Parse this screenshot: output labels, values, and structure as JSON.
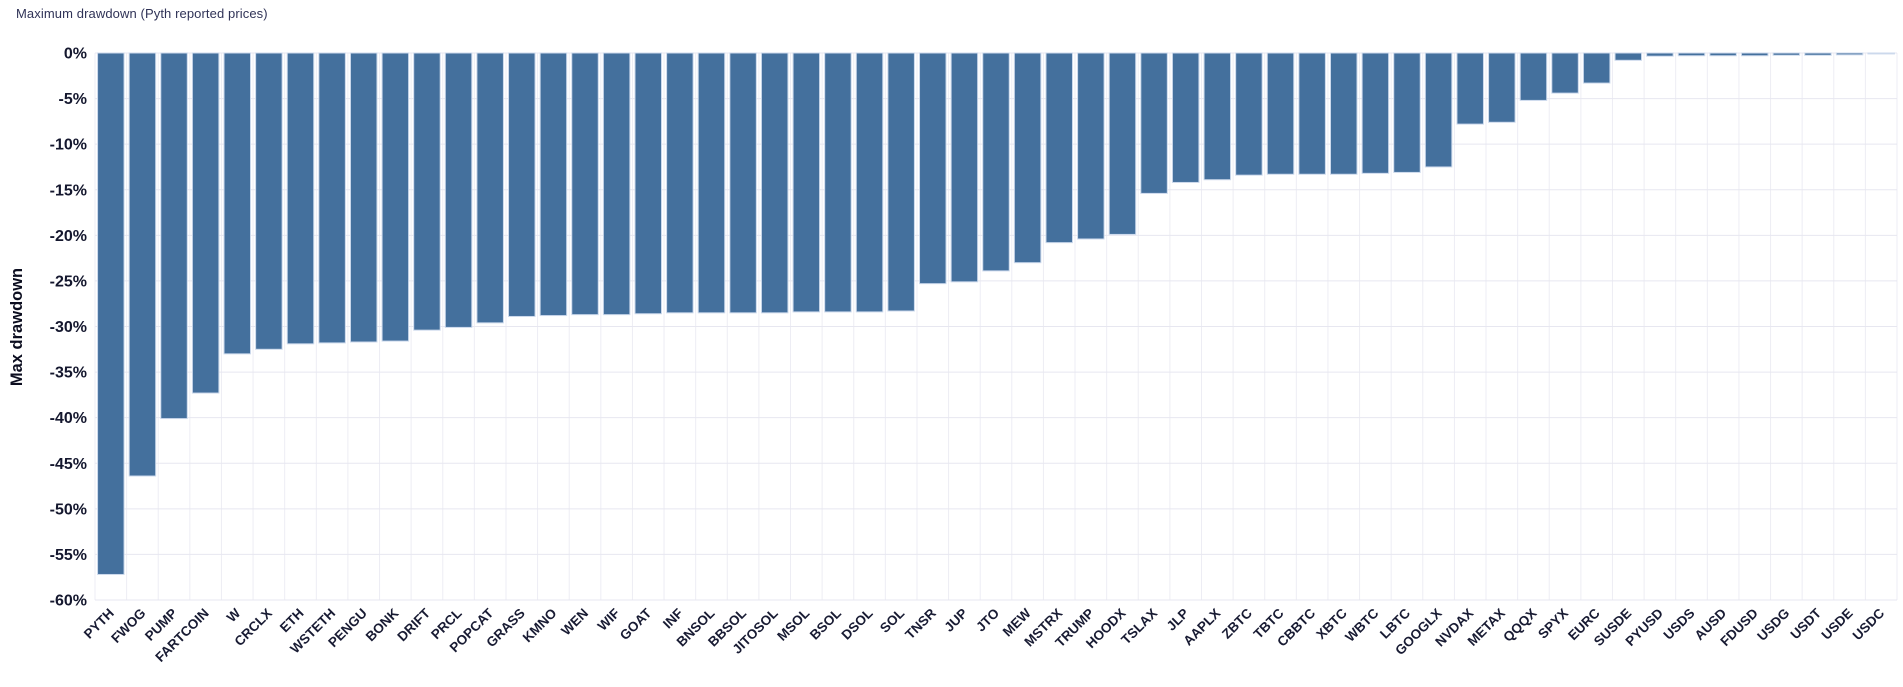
{
  "page": {
    "title": "Maximum drawdown (Pyth reported prices)"
  },
  "chart_data": {
    "type": "bar",
    "title": "Maximum drawdown (Pyth reported prices)",
    "xlabel": "",
    "ylabel": "Max drawdown",
    "value_unit": "%",
    "ylim": [
      -60,
      0
    ],
    "grid": true,
    "legend": "none",
    "bar_color": "#44709d",
    "bar_edge_color": "#ccd9ec",
    "hgrid_color": "#e7e7f0",
    "vgrid_color": "#ededf4",
    "tick_color": "#14172e",
    "ytick_values": [
      0,
      -5,
      -10,
      -15,
      -20,
      -25,
      -30,
      -35,
      -40,
      -45,
      -50,
      -55,
      -60
    ],
    "ytick_labels": [
      "0%",
      "-5%",
      "-10%",
      "-15%",
      "-20%",
      "-25%",
      "-30%",
      "-35%",
      "-40%",
      "-45%",
      "-50%",
      "-55%",
      "-60%"
    ],
    "categories": [
      "PYTH",
      "FWOG",
      "PUMP",
      "FARTCOIN",
      "W",
      "CRCLX",
      "ETH",
      "WSTETH",
      "PENGU",
      "BONK",
      "DRIFT",
      "PRCL",
      "POPCAT",
      "GRASS",
      "KMNO",
      "WEN",
      "WIF",
      "GOAT",
      "INF",
      "BNSOL",
      "BBSOL",
      "JITOSOL",
      "MSOL",
      "BSOL",
      "DSOL",
      "SOL",
      "TNSR",
      "JUP",
      "JTO",
      "MEW",
      "MSTRX",
      "TRUMP",
      "HOODX",
      "TSLAX",
      "JLP",
      "AAPLX",
      "ZBTC",
      "TBTC",
      "CBBTC",
      "XBTC",
      "WBTC",
      "LBTC",
      "GOOGLX",
      "NVDAX",
      "METAX",
      "QQQX",
      "SPYX",
      "EURC",
      "SUSDE",
      "PYUSD",
      "USDS",
      "AUSD",
      "FDUSD",
      "USDG",
      "USDT",
      "USDE",
      "USDC"
    ],
    "values": [
      -57.2,
      -46.4,
      -40.1,
      -37.3,
      -33.0,
      -32.5,
      -31.9,
      -31.8,
      -31.7,
      -31.6,
      -30.4,
      -30.1,
      -29.6,
      -28.9,
      -28.8,
      -28.7,
      -28.7,
      -28.6,
      -28.5,
      -28.5,
      -28.5,
      -28.5,
      -28.4,
      -28.4,
      -28.4,
      -28.3,
      -25.3,
      -25.1,
      -23.9,
      -23.0,
      -20.8,
      -20.4,
      -19.9,
      -15.4,
      -14.2,
      -13.9,
      -13.4,
      -13.3,
      -13.3,
      -13.3,
      -13.2,
      -13.1,
      -12.5,
      -7.8,
      -7.6,
      -5.2,
      -4.4,
      -3.3,
      -0.8,
      -0.35,
      -0.3,
      -0.3,
      -0.3,
      -0.25,
      -0.25,
      -0.2,
      -0.1
    ]
  }
}
